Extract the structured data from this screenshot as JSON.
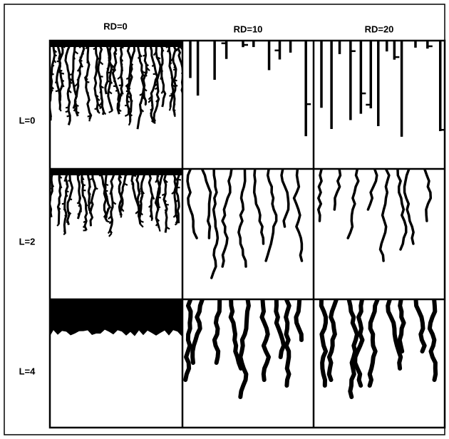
{
  "columns": [
    "RD=0",
    "RD=10",
    "RD=20"
  ],
  "rows": [
    "L=0",
    "L=2",
    "L=4"
  ]
}
